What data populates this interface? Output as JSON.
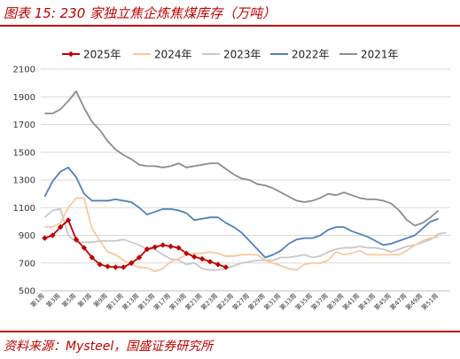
{
  "header": {
    "title": "图表 15:  230 家独立焦企炼焦煤库存（万吨）"
  },
  "footer": {
    "source": "资料来源：Mysteel，国盛证券研究所"
  },
  "colors": {
    "accent": "#c00000"
  },
  "chart_data": {
    "type": "line",
    "title": "230 家独立焦企炼焦煤库存（万吨）",
    "unit": "万吨",
    "ylim": [
      500,
      2100
    ],
    "yticks": [
      500,
      700,
      900,
      1100,
      1300,
      1500,
      1700,
      1900,
      2100
    ],
    "xticks": [
      "第1周",
      "第3周",
      "第5周",
      "第7周",
      "第9周",
      "第11周",
      "第13周",
      "第15周",
      "第17周",
      "第19周",
      "第21周",
      "第23周",
      "第25周",
      "第27周",
      "第29周",
      "第31周",
      "第33周",
      "第35周",
      "第37周",
      "第39周",
      "第41周",
      "第43周",
      "第45周",
      "第47周",
      "第49周",
      "第51周"
    ],
    "grid": true,
    "legend_position": "top",
    "series": [
      {
        "name": "2025年",
        "color": "#c00000",
        "marker": "diamond",
        "values": [
          880,
          900,
          960,
          1010,
          870,
          810,
          740,
          690,
          675,
          670,
          670,
          700,
          740,
          800,
          815,
          830,
          820,
          810,
          770,
          745,
          730,
          710,
          690,
          670
        ]
      },
      {
        "name": "2024年",
        "color": "#f8c8a0",
        "values": [
          960,
          960,
          990,
          1100,
          1170,
          1170,
          950,
          860,
          780,
          760,
          720,
          690,
          670,
          665,
          640,
          660,
          710,
          730,
          760,
          770,
          770,
          780,
          770,
          750,
          750,
          760,
          760,
          760,
          720,
          700,
          680,
          660,
          650,
          690,
          700,
          700,
          720,
          780,
          760,
          770,
          790,
          760,
          760,
          760,
          760,
          760,
          790,
          830,
          860,
          880,
          890
        ]
      },
      {
        "name": "2023年",
        "color": "#c8c8c8",
        "values": [
          1030,
          1080,
          1090,
          900,
          850,
          850,
          850,
          860,
          860,
          860,
          870,
          850,
          830,
          800,
          800,
          760,
          730,
          720,
          690,
          700,
          660,
          650,
          650,
          660,
          680,
          700,
          710,
          720,
          720,
          720,
          740,
          740,
          750,
          760,
          740,
          750,
          780,
          800,
          810,
          810,
          820,
          810,
          810,
          800,
          780,
          800,
          820,
          830,
          850,
          870,
          910,
          920
        ]
      },
      {
        "name": "2022年",
        "color": "#4f81bd",
        "values": [
          1180,
          1290,
          1360,
          1390,
          1320,
          1200,
          1150,
          1150,
          1150,
          1160,
          1150,
          1140,
          1100,
          1050,
          1070,
          1090,
          1090,
          1080,
          1060,
          1010,
          1020,
          1030,
          1030,
          990,
          960,
          920,
          860,
          800,
          740,
          760,
          790,
          840,
          870,
          880,
          880,
          900,
          940,
          960,
          960,
          930,
          910,
          890,
          860,
          830,
          840,
          860,
          880,
          900,
          950,
          1000,
          1020
        ]
      },
      {
        "name": "2021年",
        "color": "#8c8c8c",
        "values": [
          1780,
          1780,
          1810,
          1870,
          1940,
          1820,
          1720,
          1660,
          1580,
          1520,
          1480,
          1450,
          1410,
          1400,
          1400,
          1390,
          1400,
          1420,
          1390,
          1400,
          1410,
          1420,
          1420,
          1380,
          1340,
          1310,
          1300,
          1270,
          1260,
          1240,
          1210,
          1180,
          1150,
          1140,
          1150,
          1170,
          1200,
          1190,
          1210,
          1190,
          1170,
          1160,
          1160,
          1150,
          1130,
          1080,
          1010,
          970,
          990,
          1030,
          1080
        ]
      }
    ]
  }
}
